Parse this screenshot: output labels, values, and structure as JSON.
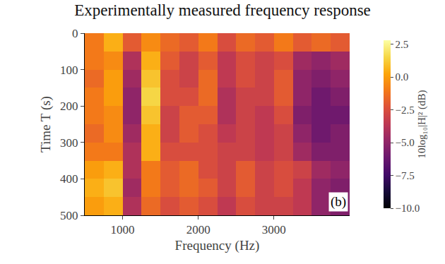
{
  "chart_data": {
    "type": "heatmap",
    "title": "Experimentally measured frequency response",
    "x_label": "Frequency (Hz)",
    "y_label": "Time T (s)",
    "colorbar_label": "10log₁₀|H|² (dB)",
    "annotation": "(b)",
    "x": [
      625,
      875,
      1125,
      1375,
      1625,
      1875,
      2125,
      2375,
      2625,
      2875,
      3125,
      3375,
      3625,
      3875
    ],
    "y": [
      25,
      75,
      125,
      175,
      225,
      275,
      325,
      375,
      425,
      475
    ],
    "z": [
      [
        -1,
        0.5,
        -2,
        -0.5,
        -1.5,
        -2,
        -1,
        -2.5,
        -1.5,
        -2,
        -1,
        -2,
        -1.5,
        -2
      ],
      [
        -1,
        -0.5,
        -4,
        0.5,
        -2,
        -3,
        -2,
        -3.5,
        -2.5,
        -3,
        -2.5,
        -4.5,
        -5,
        -4.5
      ],
      [
        -1.5,
        0,
        -4.5,
        1,
        -2.5,
        -3,
        -1.5,
        -3.5,
        -2.5,
        -3,
        -2,
        -5,
        -5.5,
        -5
      ],
      [
        -1,
        0,
        -5,
        1.5,
        -2.5,
        -2.5,
        -1.5,
        -4,
        -3,
        -3,
        -2,
        -5,
        -6,
        -5.5
      ],
      [
        -1,
        -0.5,
        -5,
        1,
        -3,
        -2,
        -2,
        -4,
        -3,
        -3.5,
        -2.5,
        -5.5,
        -6,
        -6
      ],
      [
        -1.5,
        -0.5,
        -4.5,
        0.5,
        -3,
        -2,
        -2.5,
        -3.5,
        -3,
        -3.5,
        -3,
        -5,
        -6,
        -5.5
      ],
      [
        -1,
        -1,
        -4,
        0.5,
        -2.5,
        -2.5,
        -2.5,
        -3,
        -3,
        -3.5,
        -3,
        -4.5,
        -5.5,
        -5.5
      ],
      [
        0,
        0.5,
        -4,
        -1,
        -2,
        -1.5,
        -2.5,
        -3,
        -2,
        -3,
        -2.5,
        -3,
        -4.5,
        -5
      ],
      [
        0.5,
        1,
        -4.5,
        -1,
        -2,
        -1.5,
        -2,
        -3,
        -2,
        -3,
        -2.5,
        -3.5,
        -5,
        -5.5
      ],
      [
        0,
        0.5,
        -4,
        -1.5,
        -2.5,
        -2,
        -2.5,
        -3.5,
        -2.5,
        -3,
        -3,
        -3.5,
        -5,
        -5.5
      ]
    ],
    "xlim": [
      500,
      4000
    ],
    "xticks": [
      1000,
      2000,
      3000
    ],
    "ylim": [
      0,
      500
    ],
    "yticks": [
      0,
      100,
      200,
      300,
      400,
      500
    ],
    "zlim": [
      -10,
      2.8
    ],
    "zticks": [
      {
        "value": -10,
        "label": "−10.0"
      },
      {
        "value": -7.5,
        "label": "−7.5"
      },
      {
        "value": -5,
        "label": "−5.0"
      },
      {
        "value": -2.5,
        "label": "−2.5"
      },
      {
        "value": 0,
        "label": "0.0"
      },
      {
        "value": 2.5,
        "label": "2.5"
      }
    ],
    "grid": false
  }
}
